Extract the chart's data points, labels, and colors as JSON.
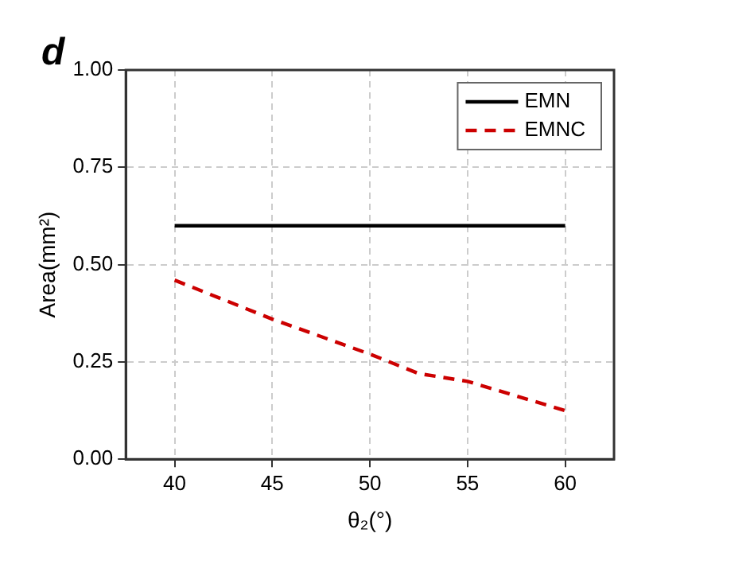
{
  "chart_data": {
    "type": "line",
    "xlabel": "θ₂(°)",
    "ylabel": "Area(mm²)",
    "annotations": [
      "d"
    ],
    "xlim": [
      37.5,
      62.5
    ],
    "xticks": [
      40,
      45,
      50,
      55,
      60
    ],
    "ylim": [
      0,
      1
    ],
    "yticks": [
      {
        "value": 0,
        "label": "0.00"
      },
      {
        "value": 0.25,
        "label": "0.25"
      },
      {
        "value": 0.5,
        "label": "0.50"
      },
      {
        "value": 0.75,
        "label": "0.75"
      },
      {
        "value": 1,
        "label": "1.00"
      }
    ],
    "grid": true,
    "legend": "top right",
    "marker": "none",
    "series": [
      {
        "name": "EMN",
        "color": "#000000",
        "line_style": "solid",
        "x": [
          40,
          60
        ],
        "values": [
          0.6,
          0.6
        ]
      },
      {
        "name": "EMNC",
        "color": "#cc0000",
        "line_style": "dashed",
        "x": [
          40,
          45,
          50,
          52.5,
          55,
          60
        ],
        "values": [
          0.46,
          0.36,
          0.27,
          0.22,
          0.2,
          0.125
        ]
      }
    ]
  }
}
